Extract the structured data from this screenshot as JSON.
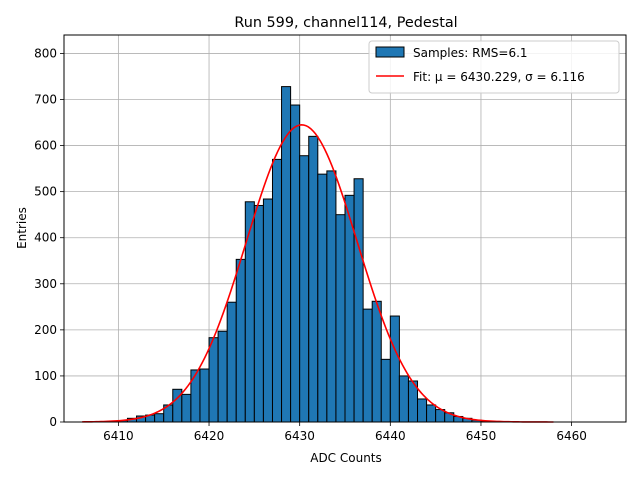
{
  "chart_data": {
    "type": "bar",
    "title": "Run 599, channel114, Pedestal",
    "xlabel": "ADC Counts",
    "ylabel": "Entries",
    "xlim": [
      6404,
      6466
    ],
    "ylim": [
      0,
      840
    ],
    "xticks": [
      6410,
      6420,
      6430,
      6440,
      6450,
      6460
    ],
    "yticks": [
      0,
      100,
      200,
      300,
      400,
      500,
      600,
      700,
      800
    ],
    "grid": true,
    "legend_position": "top-right",
    "bar_color": "#1f77b4",
    "bar_edge_color": "#000000",
    "fit_color": "#ff0000",
    "histogram": {
      "name": "Samples: RMS=6.1",
      "bin_width": 1,
      "bin_lefts": [
        6410,
        6411,
        6412,
        6413,
        6414,
        6415,
        6416,
        6417,
        6418,
        6419,
        6420,
        6421,
        6422,
        6423,
        6424,
        6425,
        6426,
        6427,
        6428,
        6429,
        6430,
        6431,
        6432,
        6433,
        6434,
        6435,
        6436,
        6437,
        6438,
        6439,
        6440,
        6441,
        6442,
        6443,
        6444,
        6445,
        6446,
        6447,
        6448,
        6449,
        6450
      ],
      "counts": [
        3,
        8,
        13,
        15,
        18,
        37,
        71,
        60,
        113,
        115,
        183,
        197,
        260,
        353,
        478,
        470,
        484,
        570,
        728,
        688,
        578,
        620,
        538,
        545,
        450,
        492,
        528,
        245,
        262,
        136,
        230,
        100,
        89,
        50,
        37,
        27,
        20,
        12,
        8,
        4,
        2
      ]
    },
    "fit": {
      "name": "Fit: μ = 6430.229, σ = 6.116",
      "mu": 6430.229,
      "sigma": 6.116,
      "amplitude": 645,
      "x_range": [
        6406,
        6458
      ]
    }
  }
}
